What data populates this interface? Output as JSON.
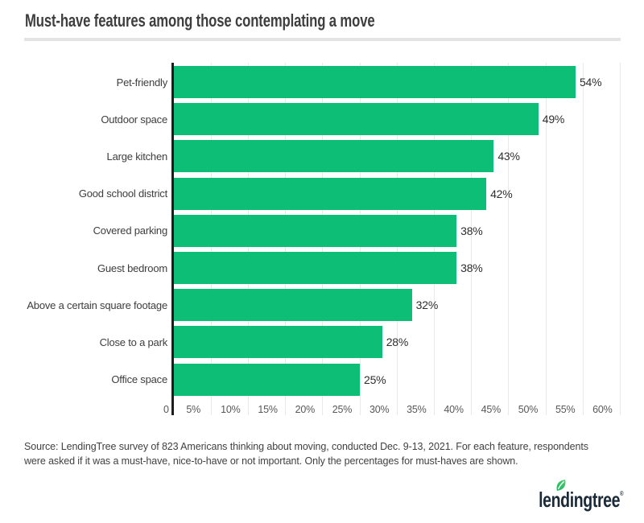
{
  "header": {
    "title": "Must-have features among those contemplating a move"
  },
  "chart_data": {
    "type": "bar",
    "orientation": "horizontal",
    "title": "Must-have features among those contemplating a move",
    "categories": [
      "Pet-friendly",
      "Outdoor space",
      "Large kitchen",
      "Good school district",
      "Covered parking",
      "Guest bedroom",
      "Above a certain square footage",
      "Close to a park",
      "Office space"
    ],
    "values": [
      54,
      49,
      43,
      42,
      38,
      38,
      32,
      28,
      25
    ],
    "value_suffix": "%",
    "xlim": [
      0,
      60
    ],
    "x_ticks": [
      "0",
      "5%",
      "10%",
      "15%",
      "20%",
      "25%",
      "30%",
      "35%",
      "40%",
      "45%",
      "50%",
      "55%",
      "60%"
    ],
    "grid": true,
    "legend": "none",
    "bar_color": "#0dbe76",
    "axis_color": "#1d1d1d",
    "gridline_color": "#e9e9e9"
  },
  "source": {
    "line1": "Source: LendingTree survey of 823 Americans thinking about moving, conducted Dec. 9-13, 2021. For each feature, respondents",
    "line2": "were asked if it was a must-have, nice-to-have or not important. Only the percentages for must-haves are shown."
  },
  "logo": {
    "wordmark": "lendingtree",
    "trademark": "®",
    "text_color": "#1b2a38",
    "leaf_color": "#2bc36d"
  }
}
